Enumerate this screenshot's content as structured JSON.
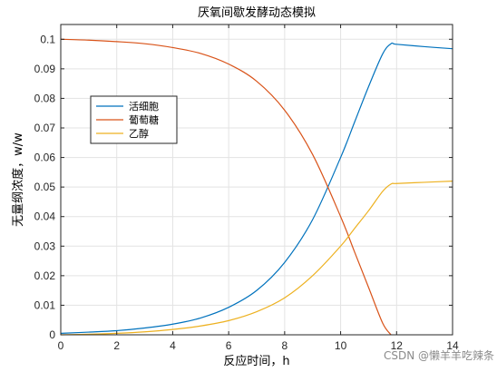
{
  "chart_data": {
    "type": "line",
    "title": "厌氧间歇发酵动态模拟",
    "xlabel": "反应时间，h",
    "ylabel": "无量纲浓度，w/w",
    "xlim": [
      0,
      14
    ],
    "ylim": [
      0,
      0.105
    ],
    "xticks": [
      "0",
      "2",
      "4",
      "6",
      "8",
      "10",
      "12",
      "14"
    ],
    "yticks": [
      "0",
      "0.01",
      "0.02",
      "0.03",
      "0.04",
      "0.05",
      "0.06",
      "0.07",
      "0.08",
      "0.09",
      "0.1"
    ],
    "grid": true,
    "legend_position": "upper-left",
    "x": [
      0,
      1,
      2,
      3,
      4,
      5,
      6,
      7,
      8,
      9,
      10,
      10.5,
      11,
      11.5,
      11.8,
      12,
      13,
      14
    ],
    "series": [
      {
        "name": "活细胞",
        "color": "#0072BD",
        "values": [
          0.0005,
          0.0009,
          0.0014,
          0.0023,
          0.0036,
          0.0057,
          0.0093,
          0.015,
          0.0245,
          0.039,
          0.06,
          0.072,
          0.084,
          0.095,
          0.0985,
          0.0983,
          0.0975,
          0.0968
        ]
      },
      {
        "name": "葡萄糖",
        "color": "#D95319",
        "values": [
          0.1,
          0.0997,
          0.0992,
          0.0985,
          0.0972,
          0.0952,
          0.0916,
          0.0858,
          0.076,
          0.061,
          0.04,
          0.028,
          0.016,
          0.004,
          0.0,
          null,
          null,
          null
        ]
      },
      {
        "name": "乙醇",
        "color": "#EDB120",
        "values": [
          0.0,
          0.0002,
          0.0005,
          0.001,
          0.0018,
          0.003,
          0.0048,
          0.0078,
          0.0125,
          0.02,
          0.03,
          0.036,
          0.042,
          0.0485,
          0.051,
          0.0512,
          0.0516,
          0.052
        ]
      }
    ]
  },
  "watermark": "CSDN @懒羊羊吃辣条"
}
